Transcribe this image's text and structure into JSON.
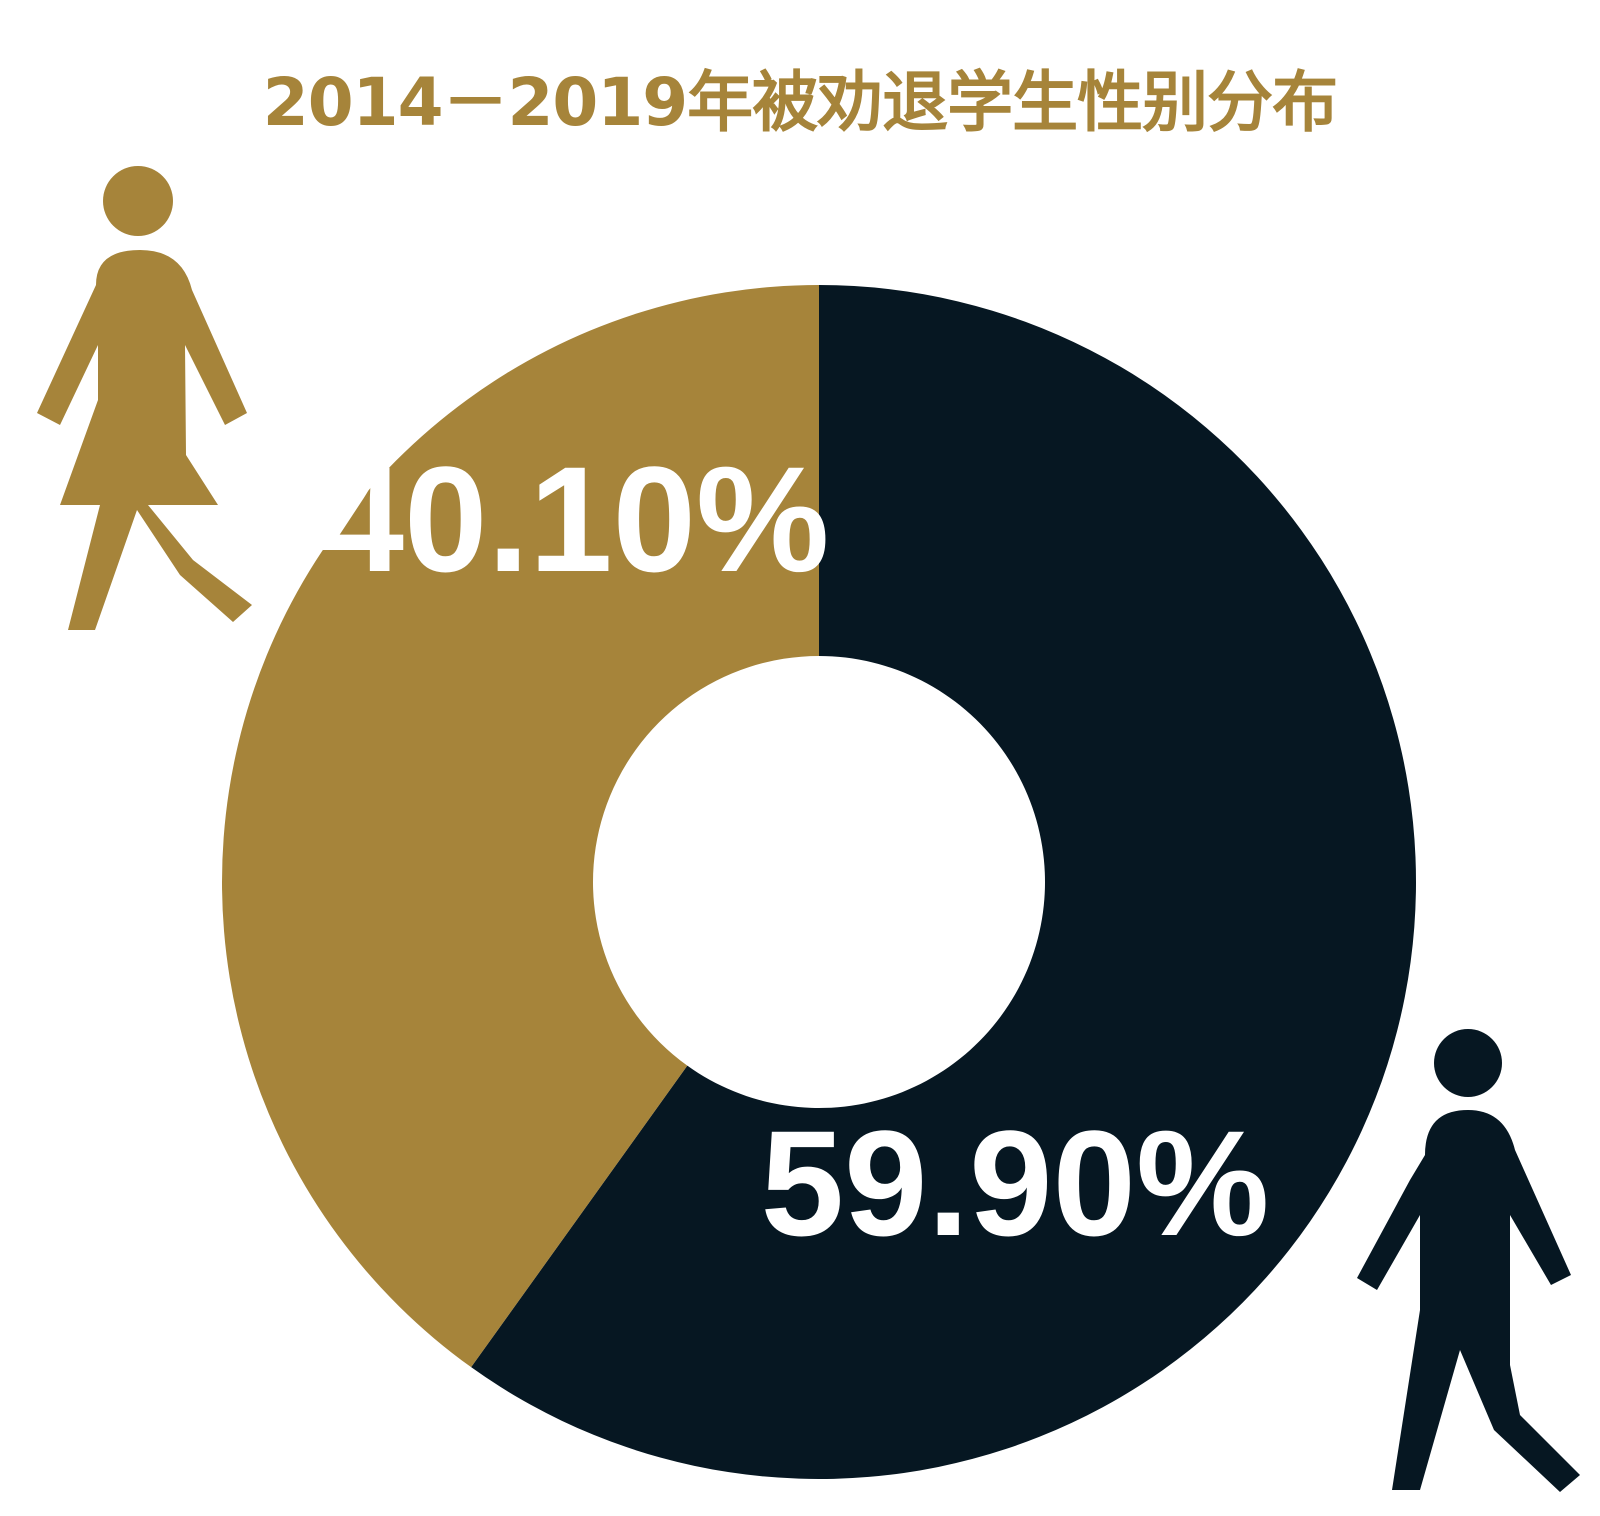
{
  "chart_data": {
    "type": "pie",
    "title": "2014－2019年被劝退学生性别分布",
    "donut": true,
    "legend": "none",
    "slices": [
      {
        "label": "40.10%",
        "value": 40.1,
        "gender_icon": "female-figure-icon",
        "color": "#A6843A"
      },
      {
        "label": "59.90%",
        "value": 59.9,
        "gender_icon": "male-figure-icon",
        "color": "#061722"
      }
    ]
  },
  "colors": {
    "title": "#A6843A",
    "female": "#A6843A",
    "male": "#061722",
    "label_text": "#FFFFFF",
    "background": "#FFFFFF"
  }
}
